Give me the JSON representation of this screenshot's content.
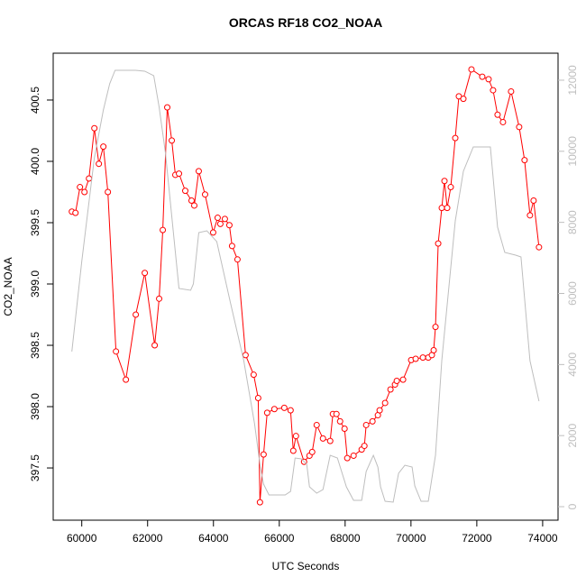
{
  "chart_data": {
    "type": "line",
    "title": "ORCAS RF18 CO2_NOAA",
    "xlabel": "UTC Seconds",
    "ylabel": "CO2_NOAA",
    "xlim": [
      59132,
      74468
    ],
    "ylim": [
      397.074,
      400.882
    ],
    "y2lim": [
      -380,
      12760
    ],
    "xticks": [
      60000,
      62000,
      64000,
      66000,
      68000,
      70000,
      72000,
      74000
    ],
    "yticks": [
      397.5,
      {
        "value": 398,
        "label": "398.0"
      },
      398.5,
      {
        "value": 399,
        "label": "399.0"
      },
      399.5,
      {
        "value": 400,
        "label": "400.0"
      },
      400.5
    ],
    "y2ticks": [
      0,
      2000,
      4000,
      6000,
      8000,
      10000,
      12000
    ],
    "y2color": "#bebebe",
    "series": [
      {
        "color": "#ff0000",
        "marker": "circle",
        "x": [
          59699,
          59809,
          59945,
          60082,
          60219,
          60383,
          60519,
          60656,
          60793,
          61039,
          61340,
          61640,
          61914,
          62215,
          62351,
          62461,
          62597,
          62734,
          62843,
          62953,
          63144,
          63335,
          63418,
          63554,
          63746,
          63992,
          64128,
          64210,
          64347,
          64484,
          64566,
          64730,
          64976,
          65222,
          65359,
          65413,
          65523,
          65632,
          65851,
          66152,
          66343,
          66425,
          66507,
          66753,
          66917,
          66999,
          67136,
          67327,
          67546,
          67628,
          67737,
          67847,
          67983,
          68065,
          68257,
          68503,
          68585,
          68639,
          68831,
          68995,
          69049,
          69214,
          69378,
          69514,
          69569,
          69760,
          70006,
          70143,
          70362,
          70526,
          70635,
          70690,
          70745,
          70827,
          70936,
          71018,
          71100,
          71209,
          71346,
          71455,
          71592,
          71838,
          72166,
          72358,
          72494,
          72631,
          72795,
          73041,
          73287,
          73451,
          73615,
          73725,
          73889
        ],
        "values": [
          399.59,
          399.58,
          399.79,
          399.75,
          399.86,
          400.27,
          399.98,
          400.12,
          399.75,
          398.45,
          398.22,
          398.75,
          399.09,
          398.5,
          398.88,
          399.44,
          400.44,
          400.17,
          399.89,
          399.9,
          399.76,
          399.68,
          399.64,
          399.92,
          399.73,
          399.42,
          399.54,
          399.49,
          399.53,
          399.48,
          399.31,
          399.2,
          398.42,
          398.26,
          398.07,
          397.22,
          397.61,
          397.95,
          397.98,
          397.99,
          397.97,
          397.64,
          397.76,
          397.55,
          397.6,
          397.63,
          397.85,
          397.74,
          397.72,
          397.94,
          397.94,
          397.88,
          397.82,
          397.58,
          397.6,
          397.65,
          397.68,
          397.85,
          397.88,
          397.93,
          397.97,
          398.03,
          398.14,
          398.18,
          398.21,
          398.22,
          398.38,
          398.39,
          398.4,
          398.4,
          398.42,
          398.46,
          398.65,
          399.33,
          399.62,
          399.84,
          399.62,
          399.79,
          400.19,
          400.53,
          400.51,
          400.75,
          400.69,
          400.67,
          400.58,
          400.38,
          400.32,
          400.57,
          400.28,
          400.01,
          399.56,
          399.68,
          399.3
        ]
      },
      {
        "color": "#bebebe",
        "axis": "y2",
        "x": [
          59699,
          60000,
          60383,
          60656,
          60848,
          61012,
          61640,
          61914,
          62187,
          62351,
          62543,
          62734,
          62953,
          63308,
          63390,
          63554,
          63800,
          64101,
          64511,
          64921,
          65249,
          65413,
          65523,
          65687,
          66179,
          66343,
          66480,
          66671,
          66835,
          66917,
          67136,
          67327,
          67546,
          67765,
          68038,
          68257,
          68503,
          68639,
          68858,
          68995,
          69077,
          69214,
          69460,
          69624,
          69815,
          70034,
          70116,
          70307,
          70526,
          70745,
          70936,
          71346,
          71592,
          71893,
          72303,
          72412,
          72631,
          72850,
          73178,
          73342,
          73615,
          73889
        ],
        "values": [
          4364,
          6901,
          9818,
          11163,
          11899,
          12279,
          12279,
          12254,
          12127,
          11239,
          9945,
          8169,
          6140,
          6089,
          6266,
          7712,
          7763,
          7459,
          5759,
          4110,
          2334,
          1192,
          634,
          330,
          330,
          431,
          1370,
          1345,
          1192,
          558,
          381,
          482,
          1446,
          1370,
          558,
          178,
          178,
          989,
          1446,
          1116,
          558,
          152,
          127,
          939,
          1167,
          1116,
          584,
          152,
          152,
          1446,
          4110,
          8042,
          9438,
          10123,
          10123,
          10123,
          7865,
          7154,
          7078,
          7027,
          4110,
          2968
        ]
      }
    ]
  }
}
